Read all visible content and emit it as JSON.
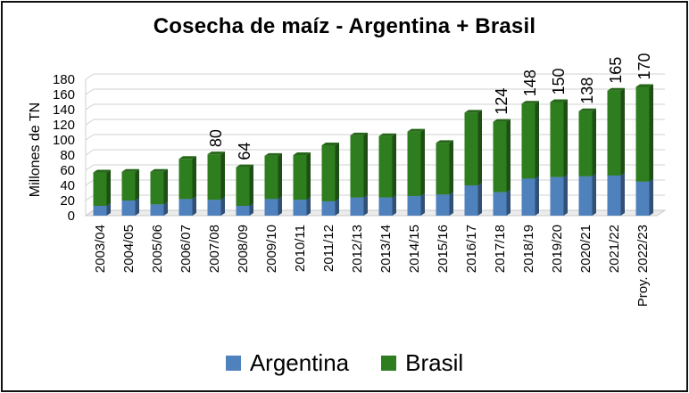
{
  "chart_data": {
    "type": "bar",
    "stacked": true,
    "title": "Cosecha de maíz - Argentina + Brasil",
    "xlabel": "",
    "ylabel": "Millones de TN",
    "ylim": [
      0,
      180
    ],
    "yticks": [
      0,
      20,
      40,
      60,
      80,
      100,
      120,
      140,
      160,
      180
    ],
    "grid": true,
    "legend_position": "bottom",
    "categories": [
      "2003/04",
      "2004/05",
      "2005/06",
      "2006/07",
      "2007/08",
      "2008/09",
      "2009/10",
      "2010/11",
      "2011/12",
      "2012/13",
      "2013/14",
      "2014/15",
      "2015/16",
      "2016/17",
      "2017/18",
      "2018/19",
      "2019/20",
      "2020/21",
      "2021/22",
      "Proy. 2022/23"
    ],
    "series": [
      {
        "name": "Argentina",
        "color": "#4f81bd",
        "values": [
          13,
          20,
          15,
          22,
          21,
          13,
          22,
          21,
          19,
          24,
          24,
          26,
          28,
          40,
          31,
          49,
          51,
          52,
          53,
          45
        ]
      },
      {
        "name": "Brasil",
        "color": "#2e7d1e",
        "values": [
          44,
          38,
          43,
          53,
          60,
          51,
          57,
          59,
          74,
          82,
          81,
          85,
          68,
          96,
          93,
          99,
          99,
          86,
          112,
          125
        ]
      }
    ],
    "total_labels": [
      {
        "index": 4,
        "text": "80"
      },
      {
        "index": 5,
        "text": "64"
      },
      {
        "index": 14,
        "text": "124"
      },
      {
        "index": 15,
        "text": "148"
      },
      {
        "index": 16,
        "text": "150"
      },
      {
        "index": 17,
        "text": "138"
      },
      {
        "index": 18,
        "text": "165"
      },
      {
        "index": 19,
        "text": "170"
      }
    ]
  }
}
